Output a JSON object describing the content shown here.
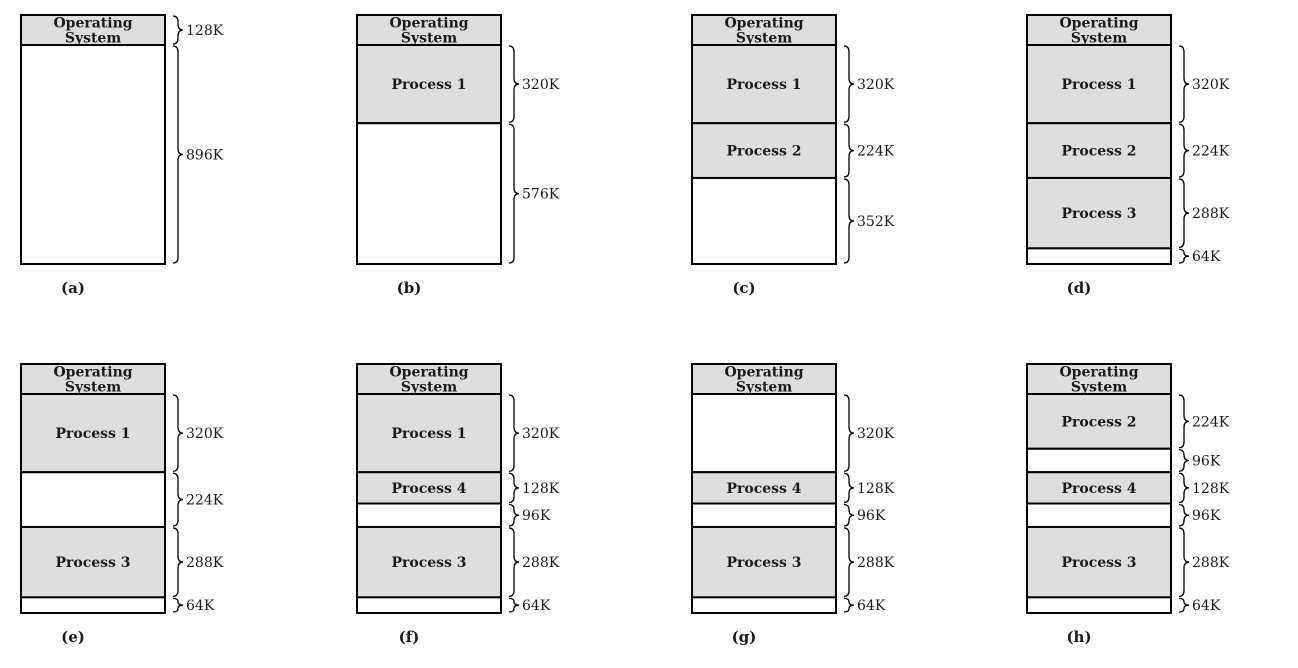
{
  "colors": {
    "used": "#dedede",
    "free": "#ffffff",
    "stroke": "#000000"
  },
  "panels": [
    {
      "caption": "(a)",
      "segments": [
        {
          "label": "Operating System",
          "lines": [
            "Operating",
            "System"
          ],
          "size": "128K",
          "kb": 128,
          "used": true
        },
        {
          "label": "",
          "lines": [],
          "size": "896K",
          "kb": 896,
          "used": false
        }
      ]
    },
    {
      "caption": "(b)",
      "segments": [
        {
          "label": "Operating System",
          "lines": [
            "Operating",
            "System"
          ],
          "size": "",
          "kb": 128,
          "used": true
        },
        {
          "label": "Process 1",
          "lines": [
            "Process 1"
          ],
          "size": "320K",
          "kb": 320,
          "used": true
        },
        {
          "label": "",
          "lines": [],
          "size": "576K",
          "kb": 576,
          "used": false
        }
      ]
    },
    {
      "caption": "(c)",
      "segments": [
        {
          "label": "Operating System",
          "lines": [
            "Operating",
            "System"
          ],
          "size": "",
          "kb": 128,
          "used": true
        },
        {
          "label": "Process 1",
          "lines": [
            "Process 1"
          ],
          "size": "320K",
          "kb": 320,
          "used": true
        },
        {
          "label": "Process 2",
          "lines": [
            "Process 2"
          ],
          "size": "224K",
          "kb": 224,
          "used": true
        },
        {
          "label": "",
          "lines": [],
          "size": "352K",
          "kb": 352,
          "used": false
        }
      ]
    },
    {
      "caption": "(d)",
      "segments": [
        {
          "label": "Operating System",
          "lines": [
            "Operating",
            "System"
          ],
          "size": "",
          "kb": 128,
          "used": true
        },
        {
          "label": "Process 1",
          "lines": [
            "Process 1"
          ],
          "size": "320K",
          "kb": 320,
          "used": true
        },
        {
          "label": "Process 2",
          "lines": [
            "Process 2"
          ],
          "size": "224K",
          "kb": 224,
          "used": true
        },
        {
          "label": "Process 3",
          "lines": [
            "Process 3"
          ],
          "size": "288K",
          "kb": 288,
          "used": true
        },
        {
          "label": "",
          "lines": [],
          "size": "64K",
          "kb": 64,
          "used": false
        }
      ]
    },
    {
      "caption": "(e)",
      "segments": [
        {
          "label": "Operating System",
          "lines": [
            "Operating",
            "System"
          ],
          "size": "",
          "kb": 128,
          "used": true
        },
        {
          "label": "Process 1",
          "lines": [
            "Process 1"
          ],
          "size": "320K",
          "kb": 320,
          "used": true
        },
        {
          "label": "",
          "lines": [],
          "size": "224K",
          "kb": 224,
          "used": false
        },
        {
          "label": "Process 3",
          "lines": [
            "Process 3"
          ],
          "size": "288K",
          "kb": 288,
          "used": true
        },
        {
          "label": "",
          "lines": [],
          "size": "64K",
          "kb": 64,
          "used": false
        }
      ]
    },
    {
      "caption": "(f)",
      "segments": [
        {
          "label": "Operating System",
          "lines": [
            "Operating",
            "System"
          ],
          "size": "",
          "kb": 128,
          "used": true
        },
        {
          "label": "Process 1",
          "lines": [
            "Process 1"
          ],
          "size": "320K",
          "kb": 320,
          "used": true
        },
        {
          "label": "Process 4",
          "lines": [
            "Process 4"
          ],
          "size": "128K",
          "kb": 128,
          "used": true
        },
        {
          "label": "",
          "lines": [],
          "size": "96K",
          "kb": 96,
          "used": false
        },
        {
          "label": "Process 3",
          "lines": [
            "Process 3"
          ],
          "size": "288K",
          "kb": 288,
          "used": true
        },
        {
          "label": "",
          "lines": [],
          "size": "64K",
          "kb": 64,
          "used": false
        }
      ]
    },
    {
      "caption": "(g)",
      "segments": [
        {
          "label": "Operating System",
          "lines": [
            "Operating",
            "System"
          ],
          "size": "",
          "kb": 128,
          "used": true
        },
        {
          "label": "",
          "lines": [],
          "size": "320K",
          "kb": 320,
          "used": false
        },
        {
          "label": "Process 4",
          "lines": [
            "Process 4"
          ],
          "size": "128K",
          "kb": 128,
          "used": true
        },
        {
          "label": "",
          "lines": [],
          "size": "96K",
          "kb": 96,
          "used": false
        },
        {
          "label": "Process 3",
          "lines": [
            "Process 3"
          ],
          "size": "288K",
          "kb": 288,
          "used": true
        },
        {
          "label": "",
          "lines": [],
          "size": "64K",
          "kb": 64,
          "used": false
        }
      ]
    },
    {
      "caption": "(h)",
      "segments": [
        {
          "label": "Operating System",
          "lines": [
            "Operating",
            "System"
          ],
          "size": "",
          "kb": 128,
          "used": true
        },
        {
          "label": "Process 2",
          "lines": [
            "Process 2"
          ],
          "size": "224K",
          "kb": 224,
          "used": true
        },
        {
          "label": "",
          "lines": [],
          "size": "96K",
          "kb": 96,
          "used": false
        },
        {
          "label": "Process 4",
          "lines": [
            "Process 4"
          ],
          "size": "128K",
          "kb": 128,
          "used": true
        },
        {
          "label": "",
          "lines": [],
          "size": "96K",
          "kb": 96,
          "used": false
        },
        {
          "label": "Process 3",
          "lines": [
            "Process 3"
          ],
          "size": "288K",
          "kb": 288,
          "used": true
        },
        {
          "label": "",
          "lines": [],
          "size": "64K",
          "kb": 64,
          "used": false
        }
      ]
    }
  ]
}
